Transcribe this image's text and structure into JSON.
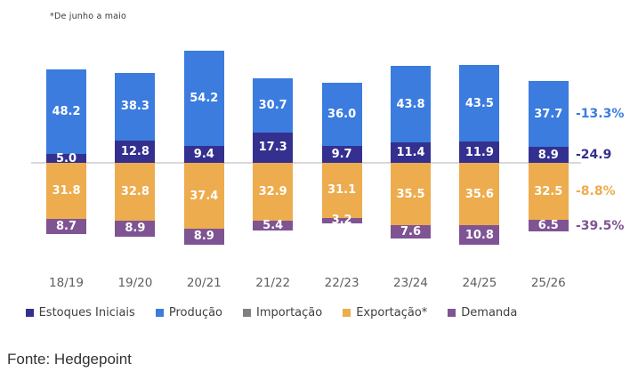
{
  "note": "*De junho a maio",
  "source": "Fonte: Hedgepoint",
  "palette": {
    "Estoques Iniciais": "#34308f",
    "Produção": "#3b7cde",
    "Importação": "#808080",
    "Exportação*": "#edac4e",
    "Demanda": "#7e5493"
  },
  "chart_data": {
    "type": "bar",
    "stacked": true,
    "title": "",
    "xlabel": "",
    "ylabel": "",
    "grid": false,
    "zero_axis_line": true,
    "legend_position": "bottom",
    "categories": [
      "18/19",
      "19/20",
      "20/21",
      "21/22",
      "22/23",
      "23/24",
      "24/25",
      "25/26"
    ],
    "series": [
      {
        "name": "Estoques Iniciais",
        "side": "above",
        "values": [
          5.0,
          12.8,
          9.4,
          17.3,
          9.7,
          11.4,
          11.9,
          8.9
        ]
      },
      {
        "name": "Produção",
        "side": "above",
        "values": [
          48.2,
          38.3,
          54.2,
          30.7,
          36.0,
          43.8,
          43.5,
          37.7
        ]
      },
      {
        "name": "Importação",
        "side": "above",
        "values": [
          0,
          0,
          0,
          0,
          0,
          0,
          0,
          0
        ]
      },
      {
        "name": "Exportação*",
        "side": "below",
        "values": [
          31.8,
          32.8,
          37.4,
          32.9,
          31.1,
          35.5,
          35.6,
          32.5
        ]
      },
      {
        "name": "Demanda",
        "side": "below",
        "values": [
          8.7,
          8.9,
          8.9,
          5.4,
          3.2,
          7.6,
          10.8,
          6.5
        ]
      }
    ],
    "annotations": [
      {
        "text": "-13.3%",
        "series": "Produção"
      },
      {
        "text": "-24.9",
        "series": "Estoques Iniciais"
      },
      {
        "text": "-8.8%",
        "series": "Exportação*"
      },
      {
        "text": "-39.5%",
        "series": "Demanda"
      }
    ]
  },
  "legend": [
    {
      "label": "Estoques Iniciais"
    },
    {
      "label": "Produção"
    },
    {
      "label": "Importação"
    },
    {
      "label": "Exportação*"
    },
    {
      "label": "Demanda"
    }
  ]
}
